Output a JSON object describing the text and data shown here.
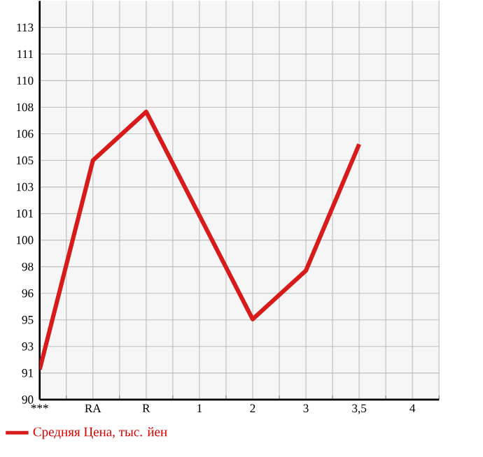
{
  "chart_data": {
    "type": "line",
    "categories": [
      "***",
      "RA",
      "R",
      "1",
      "2",
      "3",
      "3,5",
      "4"
    ],
    "series": [
      {
        "name": "Средняя Цена, тыс. йен",
        "color": "#d71a1a",
        "values": [
          91.7,
          104.6,
          107.6,
          101.2,
          94.8,
          97.8,
          105.6,
          null
        ]
      }
    ],
    "ylim": [
      89.84,
      114.44
    ],
    "yticks": [
      {
        "value": 89.84,
        "label": "90"
      },
      {
        "value": 91.48,
        "label": "91"
      },
      {
        "value": 93.12,
        "label": "93"
      },
      {
        "value": 94.76,
        "label": "95"
      },
      {
        "value": 96.4,
        "label": "96"
      },
      {
        "value": 98.04,
        "label": "98"
      },
      {
        "value": 99.68,
        "label": "100"
      },
      {
        "value": 101.32,
        "label": "101"
      },
      {
        "value": 102.96,
        "label": "103"
      },
      {
        "value": 104.6,
        "label": "105"
      },
      {
        "value": 106.24,
        "label": "106"
      },
      {
        "value": 107.88,
        "label": "108"
      },
      {
        "value": 109.52,
        "label": "110"
      },
      {
        "value": 111.16,
        "label": "111"
      },
      {
        "value": 112.8,
        "label": "113"
      }
    ],
    "grid": true,
    "legend": "bottom",
    "marker": "none",
    "line_style": "solid"
  }
}
